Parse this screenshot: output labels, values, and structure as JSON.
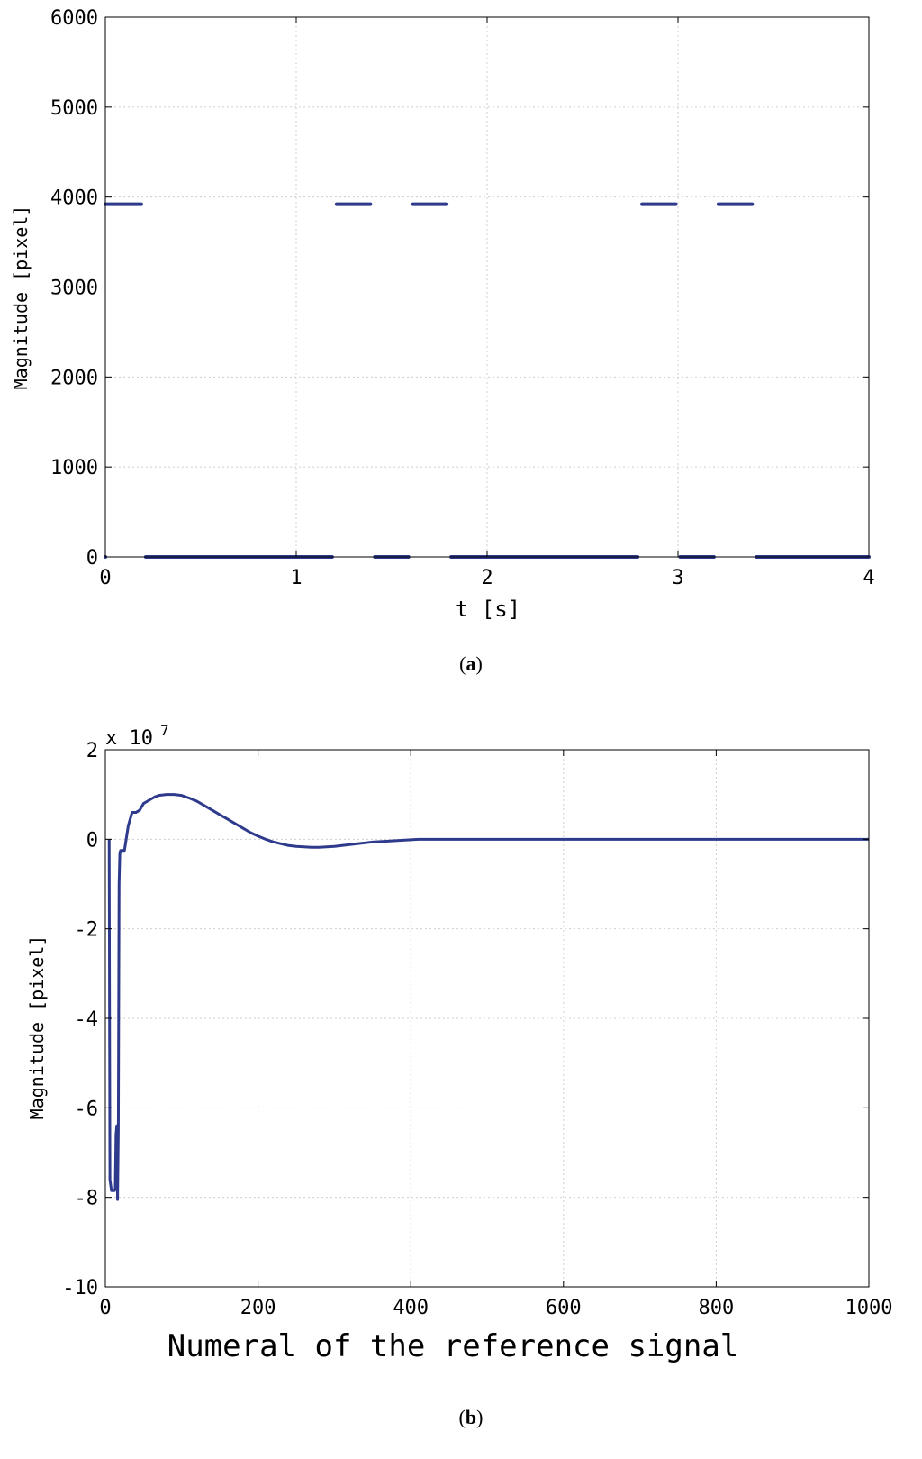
{
  "chart_data": [
    {
      "id": "a",
      "type": "scatter",
      "caption_letter": "a",
      "xlabel": "t [s]",
      "ylabel": "Magnitude [pixel]",
      "xlim": [
        0,
        4
      ],
      "ylim": [
        0,
        6000
      ],
      "xticks": [
        0,
        1,
        2,
        3,
        4
      ],
      "yticks": [
        0,
        1000,
        2000,
        3000,
        4000,
        5000,
        6000
      ],
      "grid": true,
      "series": [
        {
          "color": "#2e3a8c",
          "segments": [
            {
              "x": [
                0.0,
                0.2
              ],
              "y": 3920
            },
            {
              "x": [
                0.2,
                1.2
              ],
              "y": 0
            },
            {
              "x": [
                1.2,
                1.4
              ],
              "y": 3920
            },
            {
              "x": [
                1.4,
                1.6
              ],
              "y": 0
            },
            {
              "x": [
                1.6,
                1.8
              ],
              "y": 3920
            },
            {
              "x": [
                1.8,
                2.8
              ],
              "y": 0
            },
            {
              "x": [
                2.8,
                3.0
              ],
              "y": 3920
            },
            {
              "x": [
                3.0,
                3.2
              ],
              "y": 0
            },
            {
              "x": [
                3.2,
                3.4
              ],
              "y": 3920
            },
            {
              "x": [
                3.4,
                4.0
              ],
              "y": 0
            }
          ]
        }
      ]
    },
    {
      "id": "b",
      "type": "line",
      "caption_letter": "b",
      "xlabel": "Numeral of the reference signal",
      "ylabel": "Magnitude [pixel]",
      "scale_base": "x 10",
      "scale_exp": "7",
      "xlim": [
        0,
        1000
      ],
      "ylim": [
        -10,
        2
      ],
      "xticks": [
        0,
        200,
        400,
        600,
        800,
        1000
      ],
      "yticks": [
        -10,
        -8,
        -6,
        -4,
        -2,
        0,
        2
      ],
      "grid": true,
      "series": [
        {
          "color": "#2e3a8c",
          "x": [
            5,
            6,
            8,
            10,
            12,
            13,
            14,
            15,
            16,
            17,
            18,
            19,
            20,
            22,
            25,
            30,
            35,
            40,
            45,
            50,
            55,
            60,
            65,
            70,
            80,
            90,
            100,
            110,
            120,
            130,
            140,
            150,
            160,
            170,
            180,
            190,
            200,
            210,
            220,
            230,
            240,
            250,
            260,
            270,
            280,
            290,
            300,
            310,
            320,
            330,
            340,
            350,
            360,
            370,
            380,
            390,
            400,
            410,
            450,
            500,
            600,
            700,
            800,
            900,
            1000
          ],
          "y": [
            0,
            -7.6,
            -7.85,
            -7.85,
            -7.85,
            -7.8,
            -6.6,
            -6.4,
            -8.05,
            -6.5,
            -1.0,
            -0.3,
            -0.25,
            -0.25,
            -0.25,
            0.3,
            0.6,
            0.6,
            0.65,
            0.8,
            0.85,
            0.9,
            0.95,
            0.98,
            1.0,
            1.0,
            0.98,
            0.92,
            0.85,
            0.75,
            0.65,
            0.55,
            0.45,
            0.35,
            0.25,
            0.15,
            0.07,
            0.0,
            -0.06,
            -0.1,
            -0.14,
            -0.16,
            -0.17,
            -0.18,
            -0.18,
            -0.17,
            -0.16,
            -0.14,
            -0.12,
            -0.1,
            -0.08,
            -0.06,
            -0.05,
            -0.04,
            -0.03,
            -0.02,
            -0.01,
            0,
            0,
            0,
            0,
            0,
            0,
            0,
            0
          ]
        }
      ]
    }
  ]
}
